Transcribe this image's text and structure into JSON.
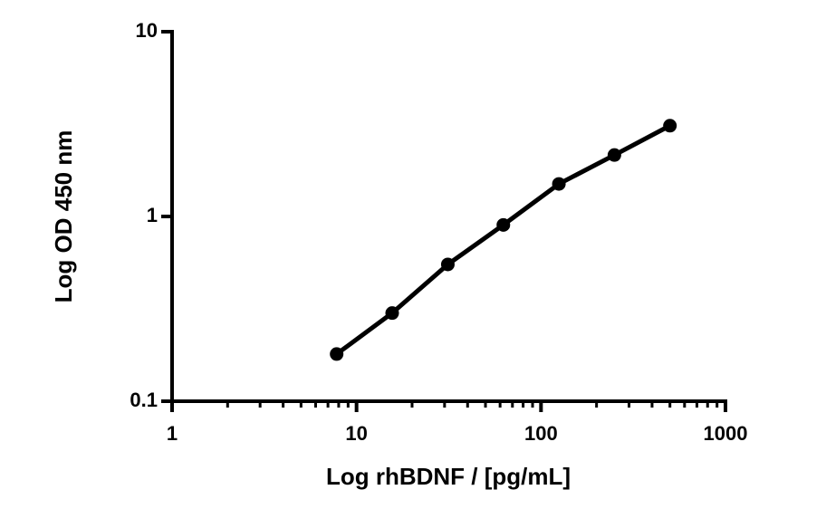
{
  "chart_data": {
    "type": "line",
    "x_label": "Log rhBDNF / [pg/mL]",
    "y_label": "Log OD 450 nm",
    "x": [
      7.8,
      15.6,
      31.25,
      62.5,
      125,
      250,
      500
    ],
    "series": [
      {
        "color": "#000000",
        "values": [
          0.18,
          0.3,
          0.55,
          0.9,
          1.5,
          2.15,
          3.1
        ]
      }
    ],
    "xlim": [
      1,
      1000
    ],
    "ylim": [
      0.1,
      10
    ],
    "xticks": [
      1,
      10,
      100,
      1000
    ],
    "xticks_minor": [
      2,
      3,
      4,
      5,
      6,
      7,
      8,
      9,
      20,
      30,
      40,
      50,
      60,
      70,
      80,
      90,
      200,
      300,
      400,
      500,
      600,
      700,
      800,
      900
    ],
    "yticks": [
      0.1,
      1,
      10
    ],
    "xscale": "log",
    "yscale": "log"
  }
}
